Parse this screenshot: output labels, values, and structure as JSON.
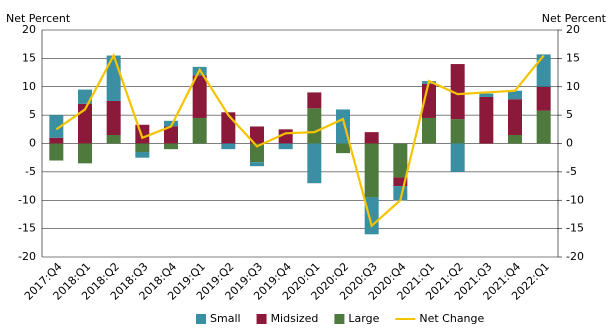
{
  "chart_data": {
    "type": "bar",
    "ylabel": "Net Percent",
    "y2label": "Net Percent",
    "categories": [
      "2017:Q4",
      "2018:Q1",
      "2018:Q2",
      "2018:Q3",
      "2018:Q4",
      "2019:Q1",
      "2019:Q2",
      "2019:Q3",
      "2019:Q4",
      "2020:Q1",
      "2020:Q2",
      "2020:Q3",
      "2020:Q4",
      "2021:Q1",
      "2021:Q2",
      "2021:Q3",
      "2021:Q4",
      "2022:Q1"
    ],
    "series": [
      {
        "name": "Small",
        "color": "#3a8fa3",
        "values": [
          4,
          2.5,
          8,
          -1,
          1,
          1.5,
          -1,
          -0.7,
          -1,
          -7,
          6,
          -6.5,
          -2.5,
          0.5,
          -5,
          0.6,
          1.5,
          5.7
        ]
      },
      {
        "name": "Midsized",
        "color": "#8b1a3a",
        "values": [
          1,
          7,
          6,
          3.3,
          3,
          7.5,
          5.5,
          3,
          2.5,
          2.8,
          0,
          2,
          -1.5,
          6,
          9.7,
          8.2,
          6.3,
          4.2
        ]
      },
      {
        "name": "Large",
        "color": "#4e7a3e",
        "values": [
          -3,
          -3.5,
          1.5,
          -1.5,
          -1,
          4.5,
          0,
          -3.3,
          0,
          6.2,
          -1.7,
          -9.5,
          -6,
          4.5,
          4.3,
          0,
          1.5,
          5.8
        ]
      }
    ],
    "stack_order": [
      2,
      1,
      0
    ],
    "line": {
      "name": "Net Change",
      "color": "#f5c400",
      "values": [
        2.5,
        6,
        15.5,
        1,
        3,
        13,
        5,
        -0.5,
        1.8,
        2,
        4.3,
        -14.5,
        -10,
        11,
        8.7,
        9,
        9.3,
        15.5
      ]
    },
    "ylim": [
      -20,
      20
    ],
    "yticks": [
      -20,
      -15,
      -10,
      -5,
      0,
      5,
      10,
      15,
      20
    ],
    "y2lim": [
      -20,
      20
    ],
    "y2ticks": [
      -20,
      -15,
      -10,
      -5,
      0,
      5,
      10,
      15,
      20
    ],
    "grid": true
  }
}
